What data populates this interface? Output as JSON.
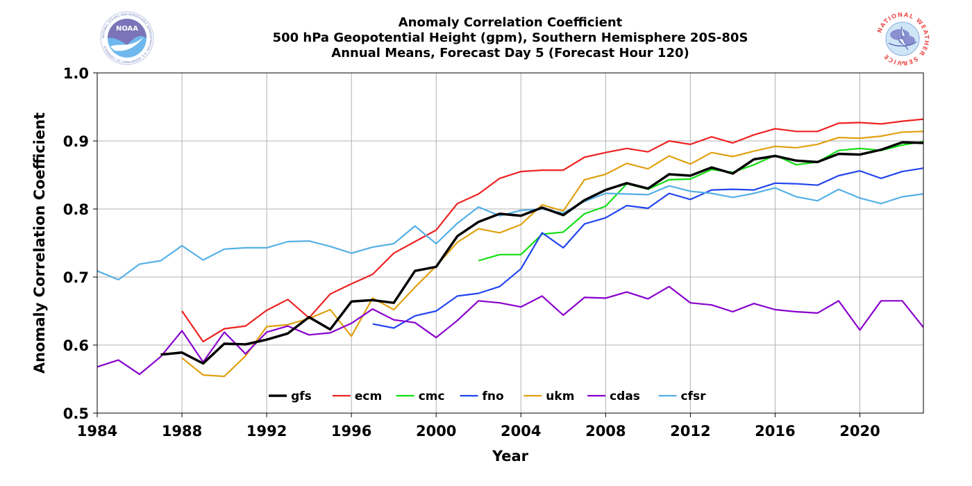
{
  "header": {
    "title_line1": "Anomaly Correlation Coefficient",
    "title_line2": "500 hPa Geopotential Height (gpm), Southern Hemisphere 20S-80S",
    "title_line3": "Annual Means, Forecast Day 5 (Forecast Hour 120)",
    "left_logo": "NOAA",
    "left_logo_text": "NATIONAL OCEANIC AND ATMOSPHERIC ADMINISTRATION · U.S. DEPARTMENT OF COMMERCE",
    "right_logo_text": "NATIONAL WEATHER SERVICE"
  },
  "chart_data": {
    "type": "line",
    "title": "Anomaly Correlation Coefficient\n500 hPa Geopotential Height (gpm), Southern Hemisphere 20S-80S\nAnnual Means, Forecast Day 5 (Forecast Hour 120)",
    "xlabel": "Year",
    "ylabel": "Anomaly Correlation Coefficient",
    "xlim": [
      1984,
      2023
    ],
    "ylim": [
      0.5,
      1.0
    ],
    "xticks": [
      1984,
      1988,
      1992,
      1996,
      2000,
      2004,
      2008,
      2012,
      2016,
      2020
    ],
    "yticks": [
      0.5,
      0.6,
      0.7,
      0.8,
      0.9,
      1.0
    ],
    "ytick_labels": [
      "0.5",
      "0.6",
      "0.7",
      "0.8",
      "0.9",
      "1.0"
    ],
    "grid": true,
    "legend_position": "bottom-center",
    "series": [
      {
        "name": "gfs",
        "color": "#000000",
        "width": 3.5,
        "x": [
          1987,
          1988,
          1989,
          1990,
          1991,
          1992,
          1993,
          1994,
          1995,
          1996,
          1997,
          1998,
          1999,
          2000,
          2001,
          2002,
          2003,
          2004,
          2005,
          2006,
          2007,
          2008,
          2009,
          2010,
          2011,
          2012,
          2013,
          2014,
          2015,
          2016,
          2017,
          2018,
          2019,
          2020,
          2021,
          2022,
          2023
        ],
        "y": [
          0.586,
          0.589,
          0.573,
          0.602,
          0.601,
          0.608,
          0.617,
          0.641,
          0.623,
          0.664,
          0.666,
          0.662,
          0.709,
          0.715,
          0.76,
          0.781,
          0.793,
          0.79,
          0.802,
          0.791,
          0.813,
          0.828,
          0.838,
          0.83,
          0.851,
          0.849,
          0.861,
          0.852,
          0.873,
          0.878,
          0.871,
          0.869,
          0.881,
          0.88,
          0.887,
          0.898,
          0.897
        ]
      },
      {
        "name": "ecm",
        "color": "#ee2222",
        "width": 2.2,
        "x": [
          1988,
          1989,
          1990,
          1991,
          1992,
          1993,
          1994,
          1995,
          1996,
          1997,
          1998,
          1999,
          2000,
          2001,
          2002,
          2003,
          2004,
          2005,
          2006,
          2007,
          2008,
          2009,
          2010,
          2011,
          2012,
          2013,
          2014,
          2015,
          2016,
          2017,
          2018,
          2019,
          2020,
          2021,
          2022,
          2023
        ],
        "y": [
          0.65,
          0.605,
          0.624,
          0.628,
          0.651,
          0.667,
          0.64,
          0.675,
          0.69,
          0.704,
          0.735,
          0.752,
          0.769,
          0.808,
          0.822,
          0.845,
          0.855,
          0.857,
          0.857,
          0.876,
          0.883,
          0.889,
          0.884,
          0.9,
          0.895,
          0.906,
          0.897,
          0.909,
          0.918,
          0.914,
          0.914,
          0.926,
          0.927,
          0.925,
          0.929,
          0.932
        ]
      },
      {
        "name": "cmc",
        "color": "#11dd11",
        "width": 2.2,
        "x": [
          2002,
          2003,
          2004,
          2005,
          2006,
          2007,
          2008,
          2009,
          2010,
          2011,
          2012,
          2013,
          2014,
          2015,
          2016,
          2017,
          2018,
          2019,
          2020,
          2021,
          2022,
          2023
        ],
        "y": [
          0.724,
          0.733,
          0.733,
          0.763,
          0.766,
          0.793,
          0.804,
          0.837,
          0.829,
          0.843,
          0.844,
          0.858,
          0.854,
          0.865,
          0.879,
          0.865,
          0.869,
          0.886,
          0.889,
          0.886,
          0.894,
          0.899
        ]
      },
      {
        "name": "fno",
        "color": "#2244ee",
        "width": 2.2,
        "x": [
          1997,
          1998,
          1999,
          2000,
          2001,
          2002,
          2003,
          2004,
          2005,
          2006,
          2007,
          2008,
          2009,
          2010,
          2011,
          2012,
          2013,
          2014,
          2015,
          2016,
          2017,
          2018,
          2019,
          2020,
          2021,
          2022,
          2023
        ],
        "y": [
          0.631,
          0.625,
          0.643,
          0.65,
          0.672,
          0.676,
          0.686,
          0.712,
          0.765,
          0.743,
          0.778,
          0.787,
          0.805,
          0.801,
          0.823,
          0.814,
          0.828,
          0.829,
          0.828,
          0.838,
          0.837,
          0.835,
          0.849,
          0.856,
          0.845,
          0.855,
          0.86
        ]
      },
      {
        "name": "ukm",
        "color": "#e0a010",
        "width": 2.2,
        "x": [
          1988,
          1989,
          1990,
          1991,
          1992,
          1993,
          1994,
          1995,
          1996,
          1997,
          1998,
          1999,
          2000,
          2001,
          2002,
          2003,
          2004,
          2005,
          2006,
          2007,
          2008,
          2009,
          2010,
          2011,
          2012,
          2013,
          2014,
          2015,
          2016,
          2017,
          2018,
          2019,
          2020,
          2021,
          2022,
          2023
        ],
        "y": [
          0.581,
          0.556,
          0.554,
          0.584,
          0.627,
          0.63,
          0.639,
          0.652,
          0.613,
          0.669,
          0.652,
          0.685,
          0.716,
          0.751,
          0.771,
          0.765,
          0.777,
          0.806,
          0.797,
          0.843,
          0.851,
          0.867,
          0.859,
          0.878,
          0.866,
          0.883,
          0.877,
          0.885,
          0.892,
          0.89,
          0.895,
          0.905,
          0.904,
          0.907,
          0.913,
          0.914
        ]
      },
      {
        "name": "cdas",
        "color": "#8800cc",
        "width": 2.2,
        "x": [
          1984,
          1985,
          1986,
          1987,
          1988,
          1989,
          1990,
          1991,
          1992,
          1993,
          1994,
          1995,
          1996,
          1997,
          1998,
          1999,
          2000,
          2001,
          2002,
          2003,
          2004,
          2005,
          2006,
          2007,
          2008,
          2009,
          2010,
          2011,
          2012,
          2013,
          2014,
          2015,
          2016,
          2017,
          2018,
          2019,
          2020,
          2021,
          2022,
          2023
        ],
        "y": [
          0.568,
          0.578,
          0.557,
          0.583,
          0.621,
          0.575,
          0.619,
          0.587,
          0.619,
          0.628,
          0.615,
          0.618,
          0.632,
          0.653,
          0.637,
          0.633,
          0.611,
          0.636,
          0.665,
          0.662,
          0.656,
          0.672,
          0.644,
          0.67,
          0.669,
          0.678,
          0.668,
          0.686,
          0.662,
          0.659,
          0.649,
          0.661,
          0.652,
          0.649,
          0.647,
          0.665,
          0.622,
          0.665,
          0.665,
          0.626
        ]
      },
      {
        "name": "cfsr",
        "color": "#55b0e6",
        "width": 2.2,
        "x": [
          1984,
          1985,
          1986,
          1987,
          1988,
          1989,
          1990,
          1991,
          1992,
          1993,
          1994,
          1995,
          1996,
          1997,
          1998,
          1999,
          2000,
          2001,
          2002,
          2003,
          2004,
          2005,
          2006,
          2007,
          2008,
          2009,
          2010,
          2011,
          2012,
          2013,
          2014,
          2015,
          2016,
          2017,
          2018,
          2019,
          2020,
          2021,
          2022,
          2023
        ],
        "y": [
          0.709,
          0.696,
          0.719,
          0.724,
          0.746,
          0.725,
          0.741,
          0.743,
          0.743,
          0.752,
          0.753,
          0.745,
          0.735,
          0.744,
          0.749,
          0.775,
          0.749,
          0.779,
          0.803,
          0.79,
          0.798,
          0.8,
          0.794,
          0.811,
          0.823,
          0.822,
          0.821,
          0.834,
          0.826,
          0.823,
          0.817,
          0.823,
          0.831,
          0.818,
          0.812,
          0.829,
          0.816,
          0.808,
          0.818,
          0.822
        ]
      }
    ]
  }
}
